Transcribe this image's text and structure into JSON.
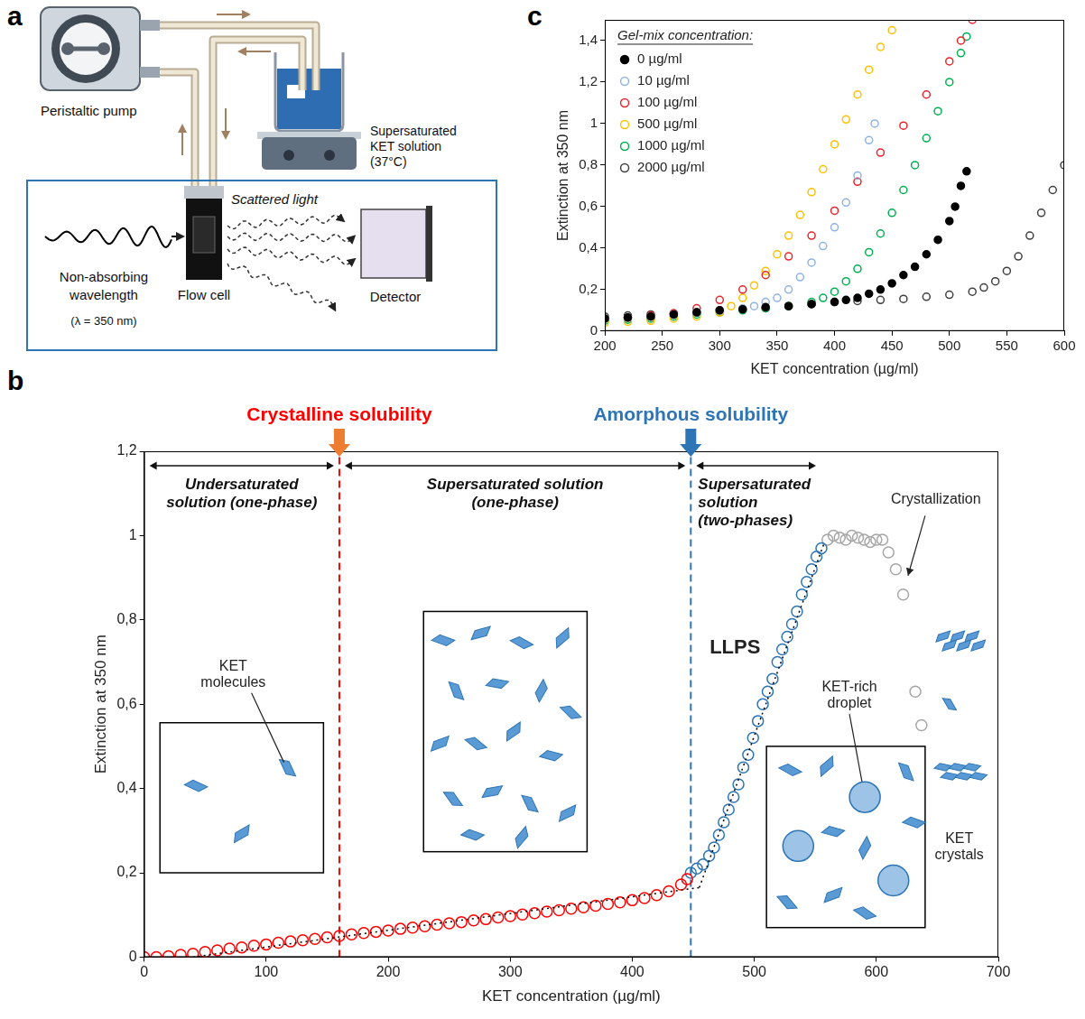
{
  "diagram": {
    "panel": "a",
    "pump": "Peristaltic pump",
    "solution": "Supersaturated KET solution (37°C)",
    "light": "Non-absorbing wavelength",
    "wavelength": "(λ = 350 nm)",
    "flow_cell": "Flow cell",
    "scattered": "Scattered light",
    "detector": "Detector"
  },
  "chart_data": [
    {
      "panel": "b",
      "type": "scatter",
      "x_label": "KET concentration (µg/ml)",
      "y_label": "Extinction at 350 nm",
      "xlim": [
        0,
        700
      ],
      "xticks": [
        0,
        100,
        200,
        300,
        400,
        500,
        600,
        700
      ],
      "ylim": [
        0,
        1.2
      ],
      "yticks": [
        0,
        {
          "value": 0.2,
          "label": "0,2"
        },
        {
          "value": 0.4,
          "label": "0,4"
        },
        {
          "value": 0.6,
          "label": "0,6"
        },
        {
          "value": 0.8,
          "label": "0,8"
        },
        1,
        {
          "value": 1.2,
          "label": "1,2"
        }
      ],
      "grid": false,
      "series": [
        {
          "color": "#ff0000",
          "marker": "open_circle",
          "x": [
            0,
            10,
            20,
            30,
            40,
            50,
            60,
            70,
            80,
            90,
            100,
            110,
            120,
            130,
            140,
            150,
            160,
            170,
            180,
            190,
            200,
            210,
            220,
            230,
            240,
            250,
            260,
            270,
            280,
            290,
            300,
            310,
            320,
            330,
            340,
            350,
            360,
            370,
            380,
            390,
            400,
            410,
            420,
            430,
            440,
            445
          ],
          "values": [
            0,
            0,
            0.002,
            0.005,
            0.008,
            0.012,
            0.016,
            0.02,
            0.023,
            0.027,
            0.03,
            0.034,
            0.037,
            0.04,
            0.043,
            0.047,
            0.05,
            0.054,
            0.057,
            0.06,
            0.063,
            0.067,
            0.07,
            0.073,
            0.077,
            0.08,
            0.083,
            0.087,
            0.09,
            0.094,
            0.097,
            0.101,
            0.104,
            0.108,
            0.111,
            0.115,
            0.118,
            0.122,
            0.126,
            0.13,
            0.135,
            0.14,
            0.147,
            0.156,
            0.172,
            0.185
          ]
        },
        {
          "color": "#2e75b6",
          "marker": "open_circle",
          "x": [
            448,
            453,
            458,
            463,
            467,
            471,
            475,
            479,
            483,
            487,
            491,
            495,
            499,
            503,
            507,
            511,
            515,
            519,
            523,
            527,
            531,
            535,
            539,
            543,
            547,
            551,
            555
          ],
          "values": [
            0.2,
            0.21,
            0.22,
            0.24,
            0.26,
            0.29,
            0.32,
            0.35,
            0.38,
            0.41,
            0.45,
            0.48,
            0.52,
            0.56,
            0.6,
            0.63,
            0.66,
            0.7,
            0.73,
            0.76,
            0.79,
            0.82,
            0.86,
            0.89,
            0.92,
            0.95,
            0.97
          ]
        },
        {
          "color": "#a6a6a6",
          "marker": "open_circle",
          "x": [
            560,
            565,
            570,
            575,
            580,
            585,
            590,
            595,
            600,
            605,
            610,
            616,
            622,
            632,
            637
          ],
          "values": [
            0.99,
            1.0,
            0.995,
            0.99,
            1.0,
            0.995,
            0.99,
            0.985,
            0.99,
            0.99,
            0.96,
            0.92,
            0.86,
            0.63,
            0.55
          ]
        },
        {
          "type": "line",
          "color": "#000000",
          "marker": "none",
          "line_style": "dotted",
          "x": [
            40,
            455
          ],
          "values": [
            0,
            0.165
          ]
        },
        {
          "type": "line",
          "color": "#000000",
          "marker": "none",
          "line_style": "dotted",
          "x": [
            455,
            557
          ],
          "values": [
            0.165,
            0.98
          ]
        }
      ],
      "annotations": {
        "lines": [
          {
            "label": "Crystalline solubility",
            "value": 160,
            "color": "#ff0000"
          },
          {
            "label": "Amorphous solubility",
            "value": 448,
            "color": "#2e75b6"
          }
        ],
        "regions": [
          {
            "label": "Undersaturated solution (one-phase)",
            "from": 0,
            "to": 160
          },
          {
            "label": "Supersaturated solution (one-phase)",
            "from": 160,
            "to": 448
          },
          {
            "label": "Supersaturated solution (two-phases)",
            "from": 448,
            "to": 555
          }
        ],
        "texts": {
          "llps": "LLPS",
          "crystallization": "Crystallization",
          "molecules": "KET molecules",
          "droplet": "KET-rich droplet",
          "crystals": "KET crystals"
        }
      }
    },
    {
      "panel": "c",
      "type": "scatter",
      "x_label": "KET concentration (µg/ml)",
      "y_label": "Extinction at 350 nm",
      "xlim": [
        200,
        600
      ],
      "xticks": [
        200,
        250,
        300,
        350,
        400,
        450,
        500,
        550,
        600
      ],
      "ylim": [
        0,
        1.5
      ],
      "yticks": [
        0,
        {
          "value": 0.2,
          "label": "0,2"
        },
        {
          "value": 0.4,
          "label": "0,4"
        },
        {
          "value": 0.6,
          "label": "0,6"
        },
        {
          "value": 0.8,
          "label": "0,8"
        },
        1,
        {
          "value": 1.2,
          "label": "1,2"
        },
        {
          "value": 1.4,
          "label": "1,4"
        }
      ],
      "grid": false,
      "legend": "upper left",
      "legend_title": "Gel-mix concentration:",
      "series": [
        {
          "name": "0 µg/ml",
          "color": "#000000",
          "marker": "filled_circle",
          "x": [
            200,
            220,
            240,
            260,
            280,
            300,
            320,
            340,
            360,
            380,
            400,
            410,
            420,
            430,
            440,
            450,
            460,
            470,
            480,
            490,
            500,
            505,
            510,
            515
          ],
          "values": [
            0.06,
            0.065,
            0.07,
            0.08,
            0.09,
            0.1,
            0.105,
            0.115,
            0.12,
            0.13,
            0.14,
            0.15,
            0.16,
            0.18,
            0.2,
            0.23,
            0.27,
            0.31,
            0.37,
            0.44,
            0.53,
            0.6,
            0.7,
            0.77
          ]
        },
        {
          "name": "10 µg/ml",
          "color": "#8fb4e3",
          "marker": "open_circle",
          "x": [
            200,
            220,
            240,
            260,
            280,
            300,
            320,
            330,
            340,
            350,
            360,
            370,
            380,
            390,
            400,
            410,
            420,
            430,
            435
          ],
          "values": [
            0.06,
            0.065,
            0.07,
            0.08,
            0.09,
            0.1,
            0.11,
            0.12,
            0.14,
            0.16,
            0.2,
            0.26,
            0.33,
            0.41,
            0.5,
            0.62,
            0.75,
            0.92,
            1.0
          ]
        },
        {
          "name": "100 µg/ml",
          "color": "#e8242b",
          "marker": "open_circle",
          "x": [
            200,
            220,
            240,
            260,
            280,
            300,
            320,
            340,
            360,
            380,
            400,
            420,
            440,
            460,
            480,
            500,
            510,
            520
          ],
          "values": [
            0.06,
            0.065,
            0.075,
            0.085,
            0.11,
            0.15,
            0.2,
            0.27,
            0.36,
            0.46,
            0.58,
            0.72,
            0.86,
            0.99,
            1.14,
            1.3,
            1.4,
            1.5
          ]
        },
        {
          "name": "500 µg/ml",
          "color": "#ffc000",
          "marker": "open_circle",
          "x": [
            200,
            220,
            240,
            260,
            280,
            300,
            310,
            320,
            330,
            340,
            350,
            360,
            370,
            380,
            390,
            400,
            410,
            420,
            430,
            440,
            450
          ],
          "values": [
            0.04,
            0.045,
            0.05,
            0.06,
            0.07,
            0.09,
            0.12,
            0.16,
            0.22,
            0.29,
            0.37,
            0.46,
            0.56,
            0.67,
            0.78,
            0.9,
            1.02,
            1.14,
            1.26,
            1.37,
            1.45
          ]
        },
        {
          "name": "1000 µg/ml",
          "color": "#00b050",
          "marker": "open_circle",
          "x": [
            200,
            220,
            240,
            260,
            280,
            300,
            320,
            340,
            360,
            380,
            390,
            400,
            410,
            420,
            430,
            440,
            450,
            460,
            470,
            480,
            490,
            500,
            510,
            515
          ],
          "values": [
            0.05,
            0.055,
            0.06,
            0.07,
            0.08,
            0.09,
            0.1,
            0.11,
            0.12,
            0.14,
            0.16,
            0.19,
            0.24,
            0.3,
            0.38,
            0.47,
            0.57,
            0.68,
            0.8,
            0.93,
            1.06,
            1.2,
            1.34,
            1.42
          ]
        },
        {
          "name": "2000 µg/ml",
          "color": "#404040",
          "marker": "open_circle",
          "x": [
            200,
            220,
            240,
            260,
            280,
            300,
            320,
            340,
            360,
            380,
            400,
            420,
            440,
            460,
            480,
            500,
            520,
            530,
            540,
            550,
            560,
            570,
            580,
            590,
            600
          ],
          "values": [
            0.07,
            0.075,
            0.08,
            0.085,
            0.09,
            0.1,
            0.105,
            0.11,
            0.12,
            0.13,
            0.14,
            0.145,
            0.15,
            0.155,
            0.165,
            0.175,
            0.19,
            0.21,
            0.24,
            0.29,
            0.36,
            0.46,
            0.57,
            0.68,
            0.8
          ]
        }
      ]
    }
  ]
}
